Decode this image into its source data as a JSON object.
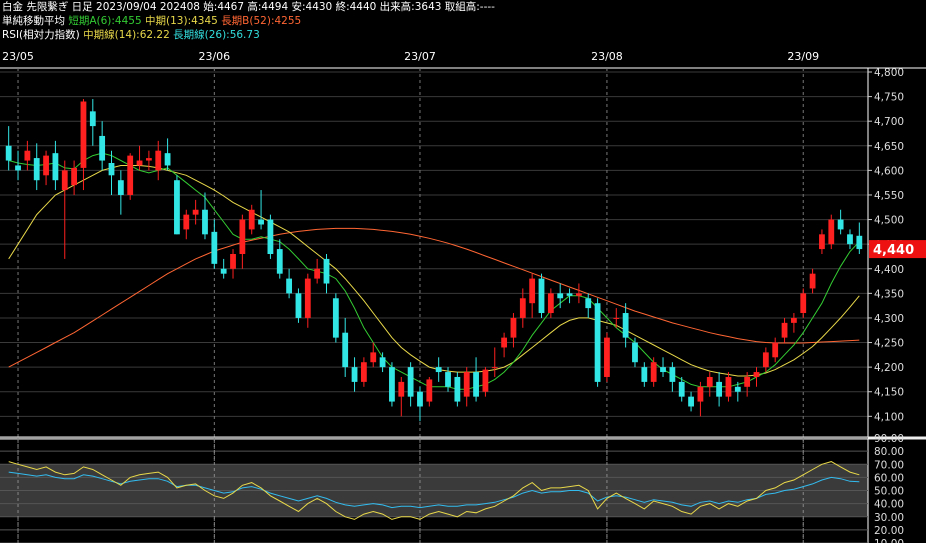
{
  "header": {
    "line1": "白金 先限繫ぎ 日足 2023/09/04 202408 始:4467 高:4494 安:4430 終:4440 出来高:3643 取組高:----",
    "ma_label": "単純移動平均",
    "ma_short": "短期A(6):4455",
    "ma_mid": "中期(13):4345",
    "ma_long": "長期B(52):4255",
    "rsi_label": "RSI(相対力指数)",
    "rsi_mid": "中期線(14):62.22",
    "rsi_long": "長期線(26):56.73"
  },
  "colors": {
    "up": "#ff2020",
    "down": "#33e6e6",
    "ma_short": "#33cc33",
    "ma_mid": "#e8d84a",
    "ma_long": "#ff6633",
    "rsi_mid": "#e8d84a",
    "rsi_long": "#33bbee",
    "price_badge": "#ee1111"
  },
  "chart_data": {
    "type": "candlestick",
    "x_tick_labels": [
      "23/05",
      "23/06",
      "23/07",
      "23/08",
      "23/09"
    ],
    "price_axis": {
      "ticks": [
        4100,
        4150,
        4200,
        4250,
        4300,
        4350,
        4400,
        4450,
        4500,
        4550,
        4600,
        4650,
        4700,
        4750,
        4800
      ],
      "tick_labels": [
        "4,100",
        "4,150",
        "4,200",
        "4,250",
        "4,300",
        "4,350",
        "4,400",
        "4,450",
        "4,500",
        "4,550",
        "4,600",
        "4,650",
        "4,700",
        "4,750",
        "4,800"
      ],
      "range": [
        4060,
        4800
      ]
    },
    "last_price": 4440,
    "last_price_label": "4,440",
    "rsi_axis": {
      "ticks": [
        10,
        20,
        30,
        40,
        50,
        60,
        70,
        80,
        90
      ],
      "tick_labels": [
        "10.00",
        "20.00",
        "30.00",
        "40.00",
        "50.00",
        "60.00",
        "70.00",
        "80.00",
        "90.00"
      ],
      "range": [
        10,
        90
      ]
    },
    "candles": [
      [
        4650,
        4690,
        4600,
        4620
      ],
      [
        4610,
        4640,
        4580,
        4600
      ],
      [
        4620,
        4660,
        4600,
        4640
      ],
      [
        4625,
        4655,
        4560,
        4580
      ],
      [
        4590,
        4640,
        4570,
        4630
      ],
      [
        4635,
        4660,
        4560,
        4580
      ],
      [
        4560,
        4620,
        4420,
        4600
      ],
      [
        4570,
        4620,
        4550,
        4605
      ],
      [
        4605,
        4745,
        4560,
        4740
      ],
      [
        4720,
        4745,
        4650,
        4690
      ],
      [
        4670,
        4700,
        4600,
        4620
      ],
      [
        4615,
        4640,
        4550,
        4590
      ],
      [
        4580,
        4600,
        4510,
        4550
      ],
      [
        4550,
        4635,
        4540,
        4630
      ],
      [
        4610,
        4650,
        4600,
        4620
      ],
      [
        4620,
        4640,
        4600,
        4625
      ],
      [
        4600,
        4660,
        4580,
        4640
      ],
      [
        4635,
        4665,
        4600,
        4610
      ],
      [
        4580,
        4590,
        4470,
        4470
      ],
      [
        4480,
        4520,
        4460,
        4510
      ],
      [
        4510,
        4540,
        4490,
        4520
      ],
      [
        4520,
        4555,
        4460,
        4470
      ],
      [
        4475,
        4500,
        4400,
        4410
      ],
      [
        4400,
        4420,
        4380,
        4390
      ],
      [
        4400,
        4440,
        4380,
        4430
      ],
      [
        4430,
        4510,
        4400,
        4500
      ],
      [
        4480,
        4530,
        4470,
        4520
      ],
      [
        4500,
        4560,
        4480,
        4490
      ],
      [
        4500,
        4510,
        4420,
        4430
      ],
      [
        4440,
        4460,
        4380,
        4390
      ],
      [
        4380,
        4400,
        4340,
        4350
      ],
      [
        4350,
        4360,
        4290,
        4300
      ],
      [
        4300,
        4390,
        4280,
        4380
      ],
      [
        4380,
        4420,
        4370,
        4400
      ],
      [
        4420,
        4430,
        4350,
        4370
      ],
      [
        4340,
        4350,
        4250,
        4260
      ],
      [
        4270,
        4300,
        4180,
        4200
      ],
      [
        4200,
        4220,
        4150,
        4170
      ],
      [
        4170,
        4220,
        4160,
        4210
      ],
      [
        4210,
        4250,
        4200,
        4230
      ],
      [
        4220,
        4230,
        4190,
        4200
      ],
      [
        4200,
        4210,
        4120,
        4130
      ],
      [
        4140,
        4180,
        4100,
        4170
      ],
      [
        4200,
        4210,
        4120,
        4140
      ],
      [
        4150,
        4160,
        4090,
        4120
      ],
      [
        4130,
        4180,
        4120,
        4175
      ],
      [
        4200,
        4220,
        4170,
        4190
      ],
      [
        4190,
        4200,
        4150,
        4160
      ],
      [
        4180,
        4190,
        4120,
        4130
      ],
      [
        4140,
        4200,
        4120,
        4190
      ],
      [
        4190,
        4220,
        4130,
        4140
      ],
      [
        4150,
        4200,
        4140,
        4195
      ],
      [
        4200,
        4240,
        4180,
        4200
      ],
      [
        4240,
        4270,
        4220,
        4260
      ],
      [
        4260,
        4310,
        4240,
        4300
      ],
      [
        4300,
        4360,
        4280,
        4340
      ],
      [
        4330,
        4390,
        4300,
        4380
      ],
      [
        4380,
        4390,
        4300,
        4310
      ],
      [
        4310,
        4360,
        4300,
        4350
      ],
      [
        4350,
        4370,
        4320,
        4340
      ],
      [
        4350,
        4360,
        4330,
        4345
      ],
      [
        4345,
        4370,
        4330,
        4350
      ],
      [
        4340,
        4350,
        4300,
        4320
      ],
      [
        4330,
        4340,
        4160,
        4170
      ],
      [
        4180,
        4270,
        4170,
        4260
      ],
      [
        4300,
        4320,
        4280,
        4300
      ],
      [
        4310,
        4330,
        4240,
        4260
      ],
      [
        4250,
        4260,
        4200,
        4210
      ],
      [
        4200,
        4210,
        4160,
        4170
      ],
      [
        4170,
        4220,
        4160,
        4210
      ],
      [
        4200,
        4220,
        4180,
        4190
      ],
      [
        4200,
        4210,
        4150,
        4170
      ],
      [
        4170,
        4180,
        4130,
        4140
      ],
      [
        4140,
        4150,
        4110,
        4120
      ],
      [
        4130,
        4170,
        4100,
        4160
      ],
      [
        4160,
        4190,
        4140,
        4180
      ],
      [
        4170,
        4190,
        4120,
        4140
      ],
      [
        4140,
        4190,
        4130,
        4180
      ],
      [
        4160,
        4170,
        4130,
        4150
      ],
      [
        4160,
        4190,
        4140,
        4180
      ],
      [
        4180,
        4200,
        4160,
        4190
      ],
      [
        4200,
        4240,
        4190,
        4230
      ],
      [
        4220,
        4260,
        4210,
        4250
      ],
      [
        4260,
        4300,
        4250,
        4290
      ],
      [
        4290,
        4310,
        4270,
        4300
      ],
      [
        4310,
        4360,
        4300,
        4350
      ],
      [
        4360,
        4400,
        4350,
        4390
      ],
      [
        4440,
        4480,
        4430,
        4470
      ],
      [
        4450,
        4510,
        4440,
        4500
      ],
      [
        4500,
        4520,
        4470,
        4480
      ],
      [
        4470,
        4480,
        4440,
        4450
      ],
      [
        4467,
        4494,
        4430,
        4440
      ]
    ],
    "ma_short": [
      4620,
      4615,
      4612,
      4610,
      4612,
      4615,
      4605,
      4603,
      4620,
      4630,
      4635,
      4630,
      4620,
      4610,
      4600,
      4595,
      4600,
      4605,
      4590,
      4575,
      4560,
      4545,
      4520,
      4495,
      4470,
      4460,
      4460,
      4465,
      4460,
      4455,
      4440,
      4420,
      4400,
      4395,
      4390,
      4380,
      4355,
      4320,
      4280,
      4250,
      4220,
      4200,
      4190,
      4180,
      4170,
      4160,
      4160,
      4160,
      4155,
      4155,
      4160,
      4165,
      4175,
      4190,
      4210,
      4235,
      4265,
      4290,
      4315,
      4330,
      4345,
      4345,
      4340,
      4320,
      4300,
      4280,
      4265,
      4250,
      4230,
      4210,
      4195,
      4185,
      4175,
      4165,
      4160,
      4160,
      4160,
      4160,
      4165,
      4170,
      4180,
      4190,
      4205,
      4225,
      4245,
      4270,
      4300,
      4330,
      4370,
      4405,
      4435,
      4455
    ],
    "ma_mid": [
      4420,
      4450,
      4480,
      4510,
      4530,
      4550,
      4560,
      4570,
      4580,
      4590,
      4600,
      4605,
      4610,
      4610,
      4610,
      4608,
      4605,
      4600,
      4595,
      4590,
      4580,
      4570,
      4560,
      4548,
      4535,
      4525,
      4515,
      4505,
      4495,
      4485,
      4475,
      4460,
      4445,
      4430,
      4415,
      4400,
      4380,
      4358,
      4335,
      4310,
      4285,
      4260,
      4240,
      4225,
      4212,
      4200,
      4195,
      4192,
      4190,
      4190,
      4190,
      4192,
      4195,
      4200,
      4210,
      4225,
      4240,
      4255,
      4270,
      4285,
      4295,
      4300,
      4300,
      4295,
      4290,
      4285,
      4275,
      4265,
      4255,
      4245,
      4235,
      4225,
      4215,
      4205,
      4198,
      4192,
      4188,
      4185,
      4182,
      4182,
      4184,
      4188,
      4195,
      4205,
      4215,
      4228,
      4242,
      4260,
      4280,
      4300,
      4322,
      4345
    ],
    "ma_long": [
      4200,
      4210,
      4220,
      4230,
      4240,
      4250,
      4260,
      4270,
      4282,
      4294,
      4306,
      4318,
      4330,
      4342,
      4354,
      4366,
      4378,
      4390,
      4400,
      4410,
      4420,
      4428,
      4436,
      4442,
      4448,
      4454,
      4458,
      4462,
      4466,
      4470,
      4473,
      4476,
      4478,
      4480,
      4481,
      4482,
      4482,
      4482,
      4481,
      4480,
      4478,
      4476,
      4473,
      4470,
      4466,
      4462,
      4457,
      4452,
      4446,
      4440,
      4433,
      4426,
      4419,
      4412,
      4405,
      4398,
      4391,
      4384,
      4377,
      4370,
      4363,
      4356,
      4349,
      4342,
      4335,
      4328,
      4321,
      4314,
      4308,
      4302,
      4296,
      4290,
      4285,
      4280,
      4275,
      4270,
      4266,
      4262,
      4258,
      4255,
      4252,
      4250,
      4249,
      4249,
      4249,
      4249,
      4250,
      4251,
      4252,
      4253,
      4254,
      4255
    ],
    "rsi_mid": [
      72,
      70,
      68,
      66,
      68,
      64,
      62,
      63,
      68,
      66,
      62,
      58,
      54,
      60,
      62,
      63,
      64,
      60,
      52,
      54,
      55,
      50,
      46,
      44,
      48,
      54,
      56,
      52,
      46,
      42,
      38,
      34,
      40,
      44,
      40,
      34,
      30,
      28,
      32,
      34,
      32,
      28,
      30,
      30,
      28,
      32,
      34,
      32,
      30,
      34,
      33,
      36,
      38,
      42,
      46,
      52,
      56,
      50,
      52,
      52,
      53,
      54,
      50,
      36,
      44,
      48,
      44,
      40,
      36,
      42,
      40,
      38,
      34,
      32,
      38,
      40,
      36,
      40,
      38,
      42,
      44,
      50,
      52,
      56,
      58,
      62,
      66,
      70,
      72,
      68,
      64,
      62
    ],
    "rsi_long": [
      64,
      63,
      62,
      61,
      62,
      60,
      59,
      59,
      62,
      61,
      59,
      57,
      55,
      57,
      58,
      59,
      59,
      57,
      53,
      54,
      54,
      52,
      50,
      48,
      49,
      52,
      53,
      51,
      48,
      46,
      44,
      42,
      44,
      46,
      44,
      41,
      39,
      38,
      39,
      40,
      39,
      37,
      38,
      38,
      37,
      38,
      39,
      38,
      38,
      39,
      39,
      40,
      41,
      43,
      45,
      48,
      50,
      48,
      49,
      49,
      50,
      50,
      48,
      42,
      45,
      46,
      45,
      43,
      41,
      43,
      42,
      41,
      39,
      38,
      41,
      42,
      40,
      42,
      41,
      43,
      44,
      47,
      48,
      50,
      51,
      53,
      55,
      58,
      60,
      59,
      57,
      56.73
    ]
  }
}
